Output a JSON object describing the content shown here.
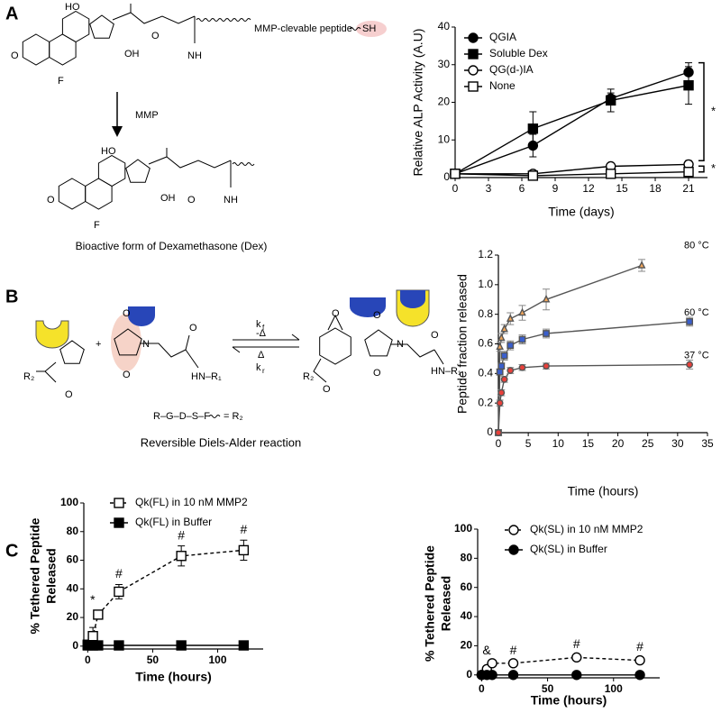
{
  "panels": [
    "A",
    "B",
    "C"
  ],
  "diagram_a": {
    "labels": [
      "HO",
      "O",
      "F",
      "OH",
      "O",
      "NH",
      "MMP-clevable peptide",
      "SH"
    ],
    "arrow_label": "MMP",
    "product_labels": [
      "HO",
      "O",
      "F",
      "OH",
      "O",
      "NH"
    ],
    "caption": "Bioactive form of Dexamethasone (Dex)"
  },
  "diagram_b": {
    "labels": [
      "R₂",
      "O",
      "+",
      "O",
      "O",
      "N",
      "O",
      "HN–R₁",
      "k",
      "f",
      "-Δ",
      "Δ",
      "k",
      "r",
      "O",
      "O",
      "O",
      "N",
      "R₂",
      "O",
      "O",
      "HN–R₁",
      "R–G–D–S–F",
      "= R₂"
    ],
    "caption": "Reversible Diels-Alder reaction"
  },
  "chart_data": [
    {
      "type": "line",
      "ylabel": "Relative ALP Activity (A.U)",
      "xlabel": "Time (days)",
      "x": [
        0,
        7,
        14,
        21
      ],
      "xlim": [
        0,
        22.7
      ],
      "xticks": [
        0,
        3,
        6,
        9,
        12,
        15,
        18,
        21
      ],
      "ylim": [
        0,
        40
      ],
      "yticks": [
        0,
        10,
        20,
        30,
        40
      ],
      "legend": "upper left",
      "series": [
        {
          "name": "QGIA",
          "color": "#000000",
          "marker": "circle",
          "filled": true,
          "line_style": "solid",
          "values": [
            1,
            8.5,
            21,
            28
          ],
          "errors": [
            0.5,
            3,
            1.5,
            2.5
          ]
        },
        {
          "name": "Soluble Dex",
          "color": "#000000",
          "marker": "square",
          "filled": true,
          "line_style": "solid",
          "values": [
            1,
            13,
            20.5,
            24.5
          ],
          "errors": [
            0.5,
            4.5,
            3,
            5
          ]
        },
        {
          "name": "QG(d-)IA",
          "color": "#000000",
          "marker": "circle",
          "filled": false,
          "line_style": "solid",
          "values": [
            1,
            1,
            3,
            3.5
          ],
          "errors": [
            0.3,
            0.3,
            0.8,
            1
          ]
        },
        {
          "name": "None",
          "color": "#000000",
          "marker": "square",
          "filled": false,
          "line_style": "solid",
          "values": [
            1,
            0.5,
            1,
            1.5
          ],
          "errors": [
            0.3,
            0.3,
            0.5,
            0.8
          ]
        }
      ],
      "annotations": [
        "*",
        "*"
      ]
    },
    {
      "type": "line",
      "ylabel": "Peptide fraction released",
      "xlabel": "Time (hours)",
      "xlim": [
        0,
        35
      ],
      "xticks": [
        0,
        5,
        10,
        15,
        20,
        25,
        30,
        35
      ],
      "ylim": [
        0,
        1.2
      ],
      "yticks": [
        0,
        0.2,
        0.4,
        0.6,
        0.8,
        {
          "value": 1,
          "label": "1.0"
        },
        1.2
      ],
      "legend": "none",
      "line_color": "#555555",
      "series": [
        {
          "name": "80 °C",
          "color": "#f2a65a",
          "marker": "triangle",
          "filled": true,
          "line_style": "solid",
          "x": [
            0,
            0.25,
            0.5,
            1,
            2,
            4,
            8,
            24
          ],
          "values": [
            0,
            0.58,
            0.64,
            0.7,
            0.77,
            0.81,
            0.9,
            1.13
          ],
          "errors": [
            0,
            0.03,
            0.03,
            0.03,
            0.04,
            0.05,
            0.07,
            0.04
          ]
        },
        {
          "name": "60 °C",
          "color": "#3a5fcd",
          "marker": "square",
          "filled": true,
          "line_style": "solid",
          "x": [
            0,
            0.25,
            0.5,
            1,
            2,
            4,
            8,
            32
          ],
          "values": [
            0,
            0.41,
            0.45,
            0.52,
            0.59,
            0.63,
            0.67,
            0.75
          ],
          "errors": [
            0,
            0.02,
            0.02,
            0.03,
            0.03,
            0.03,
            0.03,
            0.03
          ]
        },
        {
          "name": "37 °C",
          "color": "#e8403a",
          "marker": "circle",
          "filled": true,
          "line_style": "solid",
          "x": [
            0,
            0.25,
            0.5,
            1,
            2,
            4,
            8,
            32
          ],
          "values": [
            0,
            0.2,
            0.27,
            0.36,
            0.42,
            0.44,
            0.45,
            0.46
          ],
          "errors": [
            0,
            0.02,
            0.02,
            0.02,
            0.02,
            0.02,
            0.02,
            0.03
          ]
        }
      ]
    },
    {
      "type": "line",
      "ylabel": [
        "% Tethered Peptide",
        "Released"
      ],
      "xlabel": "Time (hours)",
      "x": [
        0,
        4,
        8,
        24,
        72,
        120
      ],
      "xlim": [
        -3,
        135
      ],
      "xticks": [
        0,
        50,
        100
      ],
      "ylim": [
        -2,
        100
      ],
      "yticks": [
        0,
        20,
        40,
        60,
        80,
        100
      ],
      "legend": "upper left",
      "series": [
        {
          "name": "Qk(FL) in 10 nM MMP2",
          "color": "#000000",
          "marker": "square",
          "filled": false,
          "line_style": "dashed",
          "values": [
            1,
            7,
            22,
            38,
            63,
            67
          ],
          "errors": [
            1,
            6,
            3,
            5,
            7,
            7
          ]
        },
        {
          "name": "Qk(FL) in Buffer",
          "color": "#000000",
          "marker": "square",
          "filled": true,
          "line_style": "solid",
          "values": [
            0.5,
            0.5,
            0.5,
            0.5,
            0.5,
            0.5
          ]
        }
      ],
      "annotations": [
        "*",
        "#",
        "#",
        "#"
      ]
    },
    {
      "type": "line",
      "ylabel": [
        "% Tethered Peptide",
        "Released"
      ],
      "xlabel": "Time (hours)",
      "x": [
        0,
        4,
        8,
        24,
        72,
        120
      ],
      "xlim": [
        -3,
        135
      ],
      "xticks": [
        0,
        50,
        100
      ],
      "ylim": [
        -2,
        100
      ],
      "yticks": [
        0,
        20,
        40,
        60,
        80,
        100
      ],
      "legend": "upper left",
      "series": [
        {
          "name": "Qk(SL) in 10 nM MMP2",
          "color": "#000000",
          "marker": "circle",
          "filled": false,
          "line_style": "dashed",
          "values": [
            0,
            4,
            8,
            8,
            12,
            10
          ],
          "errors": [
            0.5,
            1,
            1.5,
            1.5,
            2,
            2
          ]
        },
        {
          "name": "Qk(SL) in Buffer",
          "color": "#000000",
          "marker": "circle",
          "filled": true,
          "line_style": "solid",
          "values": [
            0,
            0,
            0,
            0,
            0,
            0
          ]
        }
      ],
      "annotations": [
        "&",
        "#",
        "#",
        "#"
      ]
    }
  ]
}
